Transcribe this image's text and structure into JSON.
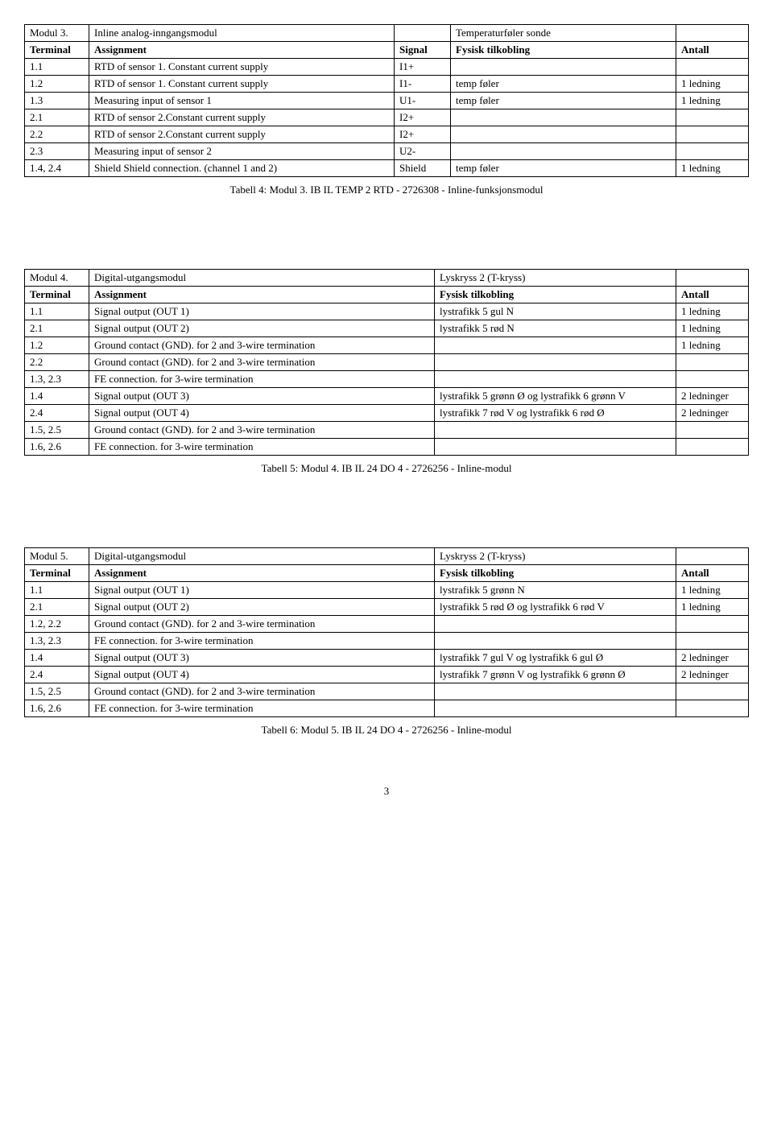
{
  "table3": {
    "header_row": {
      "c1": "Modul 3.",
      "c2": "Inline analog-inngangsmodul",
      "c3": "",
      "c4": "Temperaturføler sonde",
      "c5": ""
    },
    "cols": {
      "c1": "Terminal",
      "c2": "Assignment",
      "c3": "Signal",
      "c4": "Fysisk tilkobling",
      "c5": "Antall"
    },
    "rows": [
      {
        "c1": "1.1",
        "c2": "RTD of sensor 1. Constant current supply",
        "c3": "I1+",
        "c4": "",
        "c5": ""
      },
      {
        "c1": "1.2",
        "c2": "RTD of sensor 1. Constant current supply",
        "c3": "I1-",
        "c4": "temp føler",
        "c5": "1 ledning"
      },
      {
        "c1": "1.3",
        "c2": "Measuring input of sensor 1",
        "c3": "U1-",
        "c4": "temp føler",
        "c5": "1 ledning"
      },
      {
        "c1": "2.1",
        "c2": "RTD of sensor 2.Constant current supply",
        "c3": "I2+",
        "c4": "",
        "c5": ""
      },
      {
        "c1": "2.2",
        "c2": "RTD of sensor 2.Constant current supply",
        "c3": "I2+",
        "c4": "",
        "c5": ""
      },
      {
        "c1": "2.3",
        "c2": "Measuring input of sensor 2",
        "c3": "U2-",
        "c4": "",
        "c5": ""
      },
      {
        "c1": "1.4, 2.4",
        "c2": "Shield Shield connection. (channel 1 and 2)",
        "c3": "Shield",
        "c4": "temp føler",
        "c5": "1 ledning"
      }
    ],
    "caption": "Tabell 4: Modul 3. IB IL TEMP 2 RTD - 2726308 - Inline-funksjonsmodul",
    "col_widths": [
      "80px",
      "auto",
      "70px",
      "280px",
      "90px"
    ]
  },
  "table4": {
    "header_row": {
      "c1": "Modul 4.",
      "c2": "Digital-utgangsmodul",
      "c3": "Lyskryss 2 (T-kryss)",
      "c4": ""
    },
    "cols": {
      "c1": "Terminal",
      "c2": "Assignment",
      "c3": "Fysisk tilkobling",
      "c4": "Antall"
    },
    "rows": [
      {
        "c1": "1.1",
        "c2": "Signal output (OUT 1)",
        "c3": "lystrafikk 5 gul N",
        "c4": "1 ledning"
      },
      {
        "c1": "2.1",
        "c2": "Signal output (OUT 2)",
        "c3": "lystrafikk 5 rød N",
        "c4": "1 ledning"
      },
      {
        "c1": "1.2",
        "c2": "Ground contact (GND). for 2 and 3-wire termination",
        "c3": "",
        "c4": "1 ledning"
      },
      {
        "c1": "2.2",
        "c2": "Ground contact (GND). for 2 and 3-wire termination",
        "c3": "",
        "c4": ""
      },
      {
        "c1": "1.3, 2.3",
        "c2": "FE connection. for 3-wire termination",
        "c3": "",
        "c4": ""
      },
      {
        "c1": "1.4",
        "c2": "Signal output (OUT 3)",
        "c3": "lystrafikk 5 grønn Ø og lystrafikk 6 grønn V",
        "c4": "2 ledninger"
      },
      {
        "c1": "2.4",
        "c2": "Signal output (OUT 4)",
        "c3": "lystrafikk 7 rød V og lystrafikk 6 rød Ø",
        "c4": "2 ledninger"
      },
      {
        "c1": "1.5, 2.5",
        "c2": "Ground contact (GND). for 2 and 3-wire termination",
        "c3": "",
        "c4": ""
      },
      {
        "c1": "1.6, 2.6",
        "c2": "FE connection. for 3-wire termination",
        "c3": "",
        "c4": ""
      }
    ],
    "caption": "Tabell 5: Modul 4. IB IL 24 DO 4 - 2726256 - Inline-modul",
    "col_widths": [
      "80px",
      "auto",
      "300px",
      "90px"
    ]
  },
  "table5": {
    "header_row": {
      "c1": "Modul 5.",
      "c2": "Digital-utgangsmodul",
      "c3": "Lyskryss 2 (T-kryss)",
      "c4": ""
    },
    "cols": {
      "c1": "Terminal",
      "c2": "Assignment",
      "c3": "Fysisk tilkobling",
      "c4": "Antall"
    },
    "rows": [
      {
        "c1": "1.1",
        "c2": "Signal output (OUT 1)",
        "c3": "lystrafikk 5 grønn N",
        "c4": "1 ledning"
      },
      {
        "c1": "2.1",
        "c2": "Signal output (OUT 2)",
        "c3": "lystrafikk 5 rød Ø og lystrafikk 6 rød V",
        "c4": "1 ledning"
      },
      {
        "c1": "1.2, 2.2",
        "c2": "Ground contact (GND). for 2 and 3-wire termination",
        "c3": "",
        "c4": ""
      },
      {
        "c1": "1.3, 2.3",
        "c2": "FE connection. for 3-wire termination",
        "c3": "",
        "c4": ""
      },
      {
        "c1": "1.4",
        "c2": "Signal output (OUT 3)",
        "c3": "lystrafikk 7 gul V og lystrafikk 6 gul Ø",
        "c4": "2 ledninger"
      },
      {
        "c1": "2.4",
        "c2": "Signal output (OUT 4)",
        "c3": "lystrafikk 7 grønn V og lystrafikk 6 grønn Ø",
        "c4": "2 ledninger"
      },
      {
        "c1": "1.5, 2.5",
        "c2": "Ground contact (GND). for 2 and 3-wire termination",
        "c3": "",
        "c4": ""
      },
      {
        "c1": "1.6, 2.6",
        "c2": "FE connection. for 3-wire termination",
        "c3": "",
        "c4": ""
      }
    ],
    "caption": "Tabell 6: Modul 5. IB IL 24 DO 4 - 2726256 - Inline-modul",
    "col_widths": [
      "80px",
      "auto",
      "300px",
      "90px"
    ]
  },
  "page_number": "3"
}
